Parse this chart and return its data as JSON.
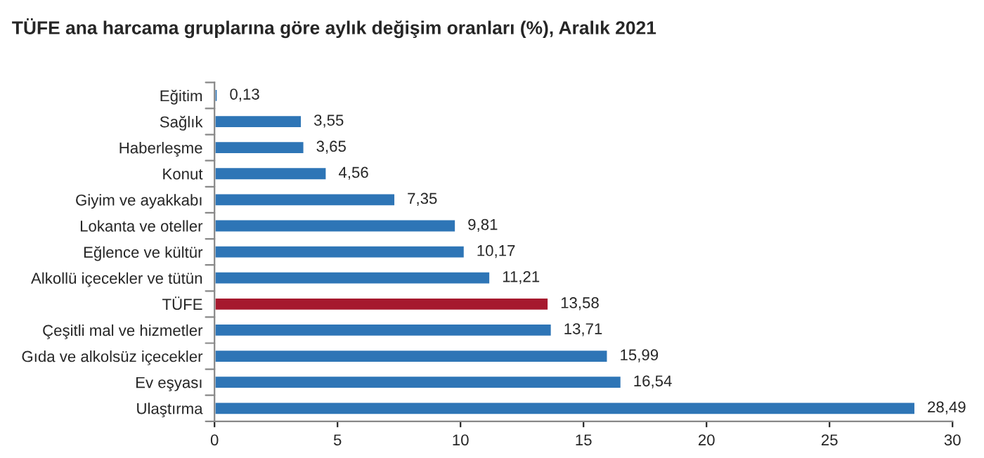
{
  "chart_data": {
    "type": "bar",
    "orientation": "horizontal",
    "title": "TÜFE ana harcama gruplarına göre aylık değişim oranları (%), Aralık 2021",
    "categories": [
      "Eğitim",
      "Sağlık",
      "Haberleşme",
      "Konut",
      "Giyim ve ayakkabı",
      "Lokanta ve oteller",
      "Eğlence ve kültür",
      "Alkollü içecekler ve tütün",
      "TÜFE",
      "Çeşitli mal ve hizmetler",
      "Gıda ve alkolsüz içecekler",
      "Ev eşyası",
      "Ulaştırma"
    ],
    "values": [
      0.13,
      3.55,
      3.65,
      4.56,
      7.35,
      9.81,
      10.17,
      11.21,
      13.58,
      13.71,
      15.99,
      16.54,
      28.49
    ],
    "value_labels": [
      "0,13",
      "3,55",
      "3,65",
      "4,56",
      "7,35",
      "9,81",
      "10,17",
      "11,21",
      "13,58",
      "13,71",
      "15,99",
      "16,54",
      "28,49"
    ],
    "colors": [
      "#2e75b6",
      "#2e75b6",
      "#2e75b6",
      "#2e75b6",
      "#2e75b6",
      "#2e75b6",
      "#2e75b6",
      "#2e75b6",
      "#a6192e",
      "#2e75b6",
      "#2e75b6",
      "#2e75b6",
      "#2e75b6"
    ],
    "xlim": [
      0,
      30
    ],
    "xticks": [
      0,
      5,
      10,
      15,
      20,
      25,
      30
    ],
    "grid": false,
    "legend": false
  }
}
